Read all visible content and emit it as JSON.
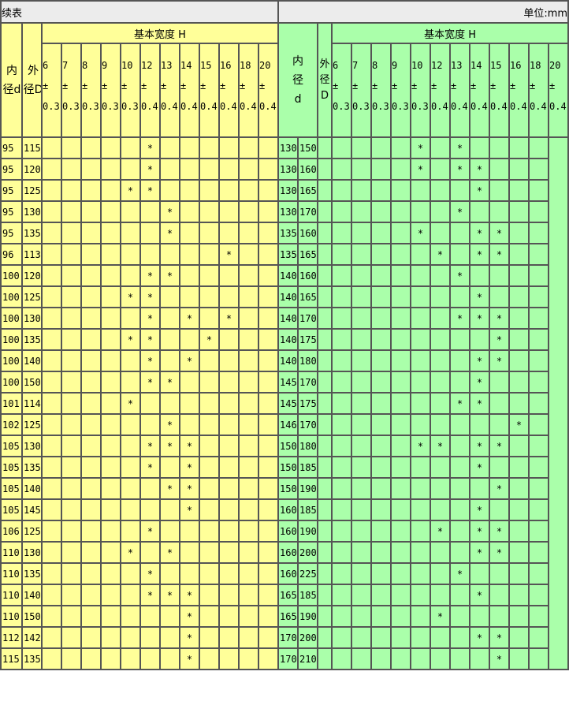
{
  "title": "续表",
  "unit": "单位:mm",
  "header": {
    "inner_left": "内径d",
    "outer_left": "外径D",
    "inner_right": "内径 d",
    "outer_right": "外径D",
    "group": "基本宽度 H"
  },
  "width_columns": [
    {
      "w": "6",
      "tol": "0.3"
    },
    {
      "w": "7",
      "tol": "0.3"
    },
    {
      "w": "8",
      "tol": "0.3"
    },
    {
      "w": "9",
      "tol": "0.3"
    },
    {
      "w": "10",
      "tol": "0.3"
    },
    {
      "w": "12",
      "tol": "0.4"
    },
    {
      "w": "13",
      "tol": "0.4"
    },
    {
      "w": "14",
      "tol": "0.4"
    },
    {
      "w": "15",
      "tol": "0.4"
    },
    {
      "w": "16",
      "tol": "0.4"
    },
    {
      "w": "18",
      "tol": "0.4"
    },
    {
      "w": "20",
      "tol": "0.4"
    }
  ],
  "pm": "±",
  "mark": "*",
  "colors": {
    "left_bg": "#ffff99",
    "right_bg": "#aaffaa",
    "title_bg": "#ececec"
  },
  "rows": [
    {
      "l": [
        "95",
        "115",
        [
          "12"
        ]
      ],
      "r": [
        "130",
        "150",
        [
          "10",
          "13"
        ]
      ]
    },
    {
      "l": [
        "95",
        "120",
        [
          "12"
        ]
      ],
      "r": [
        "130",
        "160",
        [
          "10",
          "13",
          "14"
        ]
      ]
    },
    {
      "l": [
        "95",
        "125",
        [
          "10",
          "12"
        ]
      ],
      "r": [
        "130",
        "165",
        [
          "14"
        ]
      ]
    },
    {
      "l": [
        "95",
        "130",
        [
          "13"
        ]
      ],
      "r": [
        "130",
        "170",
        [
          "13"
        ]
      ]
    },
    {
      "l": [
        "95",
        "135",
        [
          "13"
        ]
      ],
      "r": [
        "135",
        "160",
        [
          "10",
          "14",
          "15"
        ]
      ]
    },
    {
      "l": [
        "96",
        "113",
        [
          "16"
        ]
      ],
      "r": [
        "135",
        "165",
        [
          "12",
          "14",
          "15"
        ]
      ]
    },
    {
      "l": [
        "100",
        "120",
        [
          "12",
          "13"
        ]
      ],
      "r": [
        "140",
        "160",
        [
          "13"
        ]
      ]
    },
    {
      "l": [
        "100",
        "125",
        [
          "10",
          "12"
        ]
      ],
      "r": [
        "140",
        "165",
        [
          "14"
        ]
      ]
    },
    {
      "l": [
        "100",
        "130",
        [
          "12",
          "14",
          "16"
        ]
      ],
      "r": [
        "140",
        "170",
        [
          "13",
          "14",
          "15"
        ]
      ]
    },
    {
      "l": [
        "100",
        "135",
        [
          "10",
          "12",
          "15"
        ]
      ],
      "r": [
        "140",
        "175",
        [
          "15"
        ]
      ]
    },
    {
      "l": [
        "100",
        "140",
        [
          "12",
          "14"
        ]
      ],
      "r": [
        "140",
        "180",
        [
          "14",
          "15"
        ]
      ]
    },
    {
      "l": [
        "100",
        "150",
        [
          "12",
          "13"
        ]
      ],
      "r": [
        "145",
        "170",
        [
          "14"
        ]
      ]
    },
    {
      "l": [
        "101",
        "114",
        [
          "10"
        ]
      ],
      "r": [
        "145",
        "175",
        [
          "13",
          "14"
        ]
      ]
    },
    {
      "l": [
        "102",
        "125",
        [
          "13"
        ]
      ],
      "r": [
        "146",
        "170",
        [
          "16"
        ]
      ]
    },
    {
      "l": [
        "105",
        "130",
        [
          "12",
          "13",
          "14"
        ]
      ],
      "r": [
        "150",
        "180",
        [
          "10",
          "12",
          "14",
          "15"
        ]
      ]
    },
    {
      "l": [
        "105",
        "135",
        [
          "12",
          "14"
        ]
      ],
      "r": [
        "150",
        "185",
        [
          "14"
        ]
      ]
    },
    {
      "l": [
        "105",
        "140",
        [
          "13",
          "14"
        ]
      ],
      "r": [
        "150",
        "190",
        [
          "15"
        ]
      ]
    },
    {
      "l": [
        "105",
        "145",
        [
          "14"
        ]
      ],
      "r": [
        "160",
        "185",
        [
          "14"
        ]
      ]
    },
    {
      "l": [
        "106",
        "125",
        [
          "12"
        ]
      ],
      "r": [
        "160",
        "190",
        [
          "12",
          "14",
          "15"
        ]
      ]
    },
    {
      "l": [
        "110",
        "130",
        [
          "10",
          "13"
        ]
      ],
      "r": [
        "160",
        "200",
        [
          "14",
          "15"
        ]
      ]
    },
    {
      "l": [
        "110",
        "135",
        [
          "12"
        ]
      ],
      "r": [
        "160",
        "225",
        [
          "13"
        ]
      ]
    },
    {
      "l": [
        "110",
        "140",
        [
          "12",
          "13",
          "14"
        ]
      ],
      "r": [
        "165",
        "185",
        [
          "14"
        ]
      ]
    },
    {
      "l": [
        "110",
        "150",
        [
          "14"
        ]
      ],
      "r": [
        "165",
        "190",
        [
          "12"
        ]
      ]
    },
    {
      "l": [
        "112",
        "142",
        [
          "14"
        ]
      ],
      "r": [
        "170",
        "200",
        [
          "14",
          "15"
        ]
      ]
    },
    {
      "l": [
        "115",
        "135",
        [
          "14"
        ]
      ],
      "r": [
        "170",
        "210",
        [
          "15"
        ]
      ]
    }
  ]
}
